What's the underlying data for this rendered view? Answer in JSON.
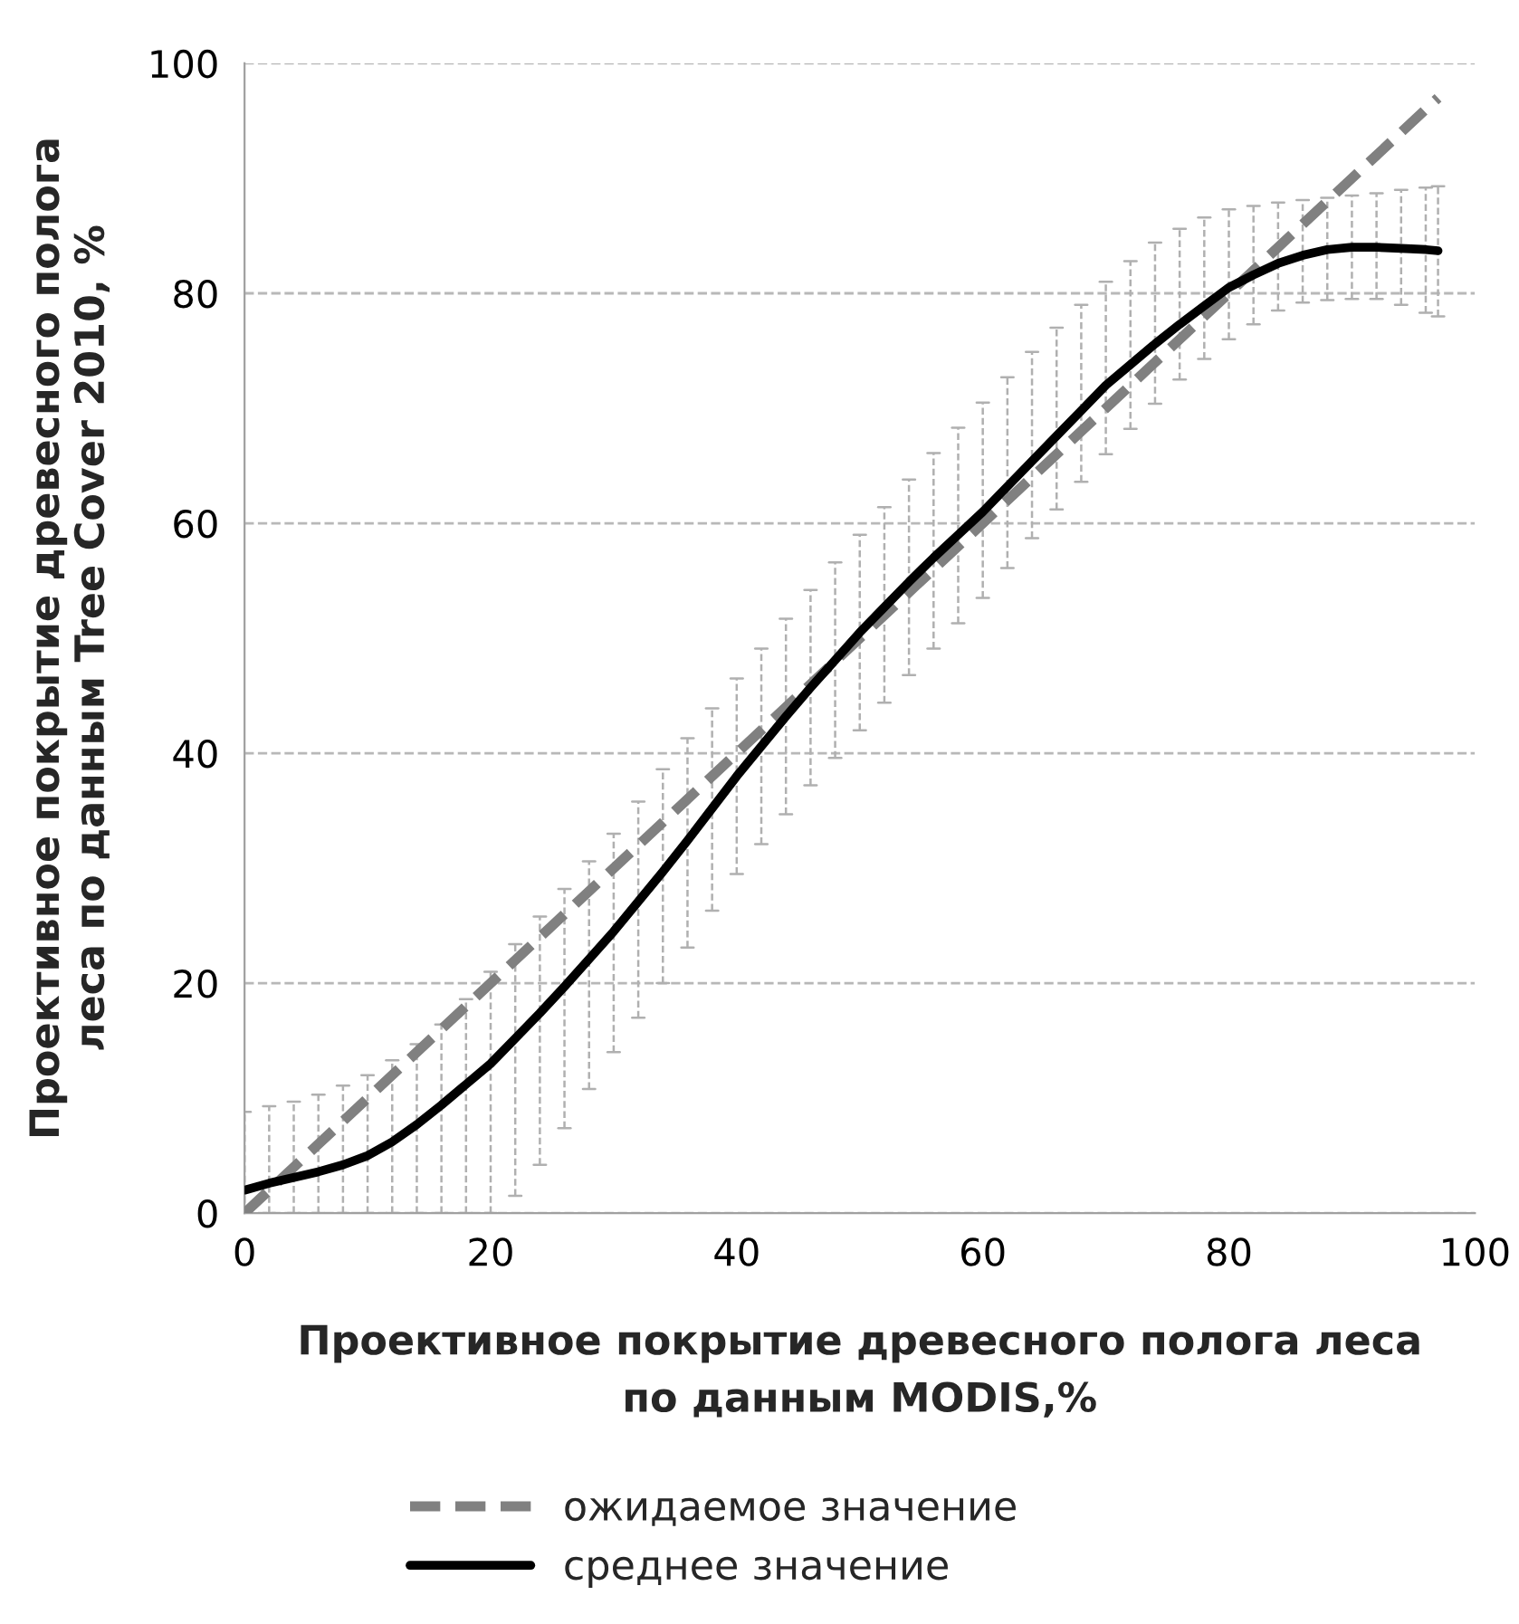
{
  "chart_data": {
    "type": "line",
    "xlabel": "Проективное покрытие древесного полога леса\nпо данным MODIS,%",
    "ylabel": "Проективное покрытие древесного полога\nлеса по данным Tree Cover 2010, %",
    "xlim": [
      0,
      100
    ],
    "xticks": [
      0,
      20,
      40,
      60,
      80,
      100
    ],
    "ylim": [
      0,
      100
    ],
    "yticks": [
      0,
      20,
      40,
      60,
      80,
      100
    ],
    "grid": "y",
    "legend": "bottom",
    "marker": "none",
    "series": [
      {
        "name": "ожидаемое значение",
        "color": "#808080",
        "line_style": "dashed",
        "x": [
          0,
          97
        ],
        "values": [
          0,
          97
        ]
      },
      {
        "name": "среднее значение",
        "color": "#000000",
        "line_style": "solid",
        "x": [
          0,
          2,
          4,
          6,
          8,
          10,
          12,
          14,
          16,
          18,
          20,
          22,
          24,
          26,
          28,
          30,
          32,
          34,
          36,
          38,
          40,
          42,
          44,
          46,
          48,
          50,
          52,
          54,
          56,
          58,
          60,
          62,
          64,
          66,
          68,
          70,
          72,
          74,
          76,
          78,
          80,
          82,
          84,
          86,
          88,
          90,
          92,
          94,
          96,
          97
        ],
        "values": [
          2,
          2.6,
          3.1,
          3.6,
          4.2,
          5,
          6.2,
          7.7,
          9.4,
          11.2,
          13,
          15.2,
          17.4,
          19.7,
          22.1,
          24.5,
          27.1,
          29.7,
          32.4,
          35.2,
          38,
          40.6,
          43.2,
          45.7,
          48.1,
          50.5,
          52.7,
          54.9,
          57,
          59,
          61,
          63.2,
          65.4,
          67.6,
          69.8,
          72,
          73.8,
          75.6,
          77.3,
          78.9,
          80.5,
          81.6,
          82.6,
          83.3,
          83.8,
          84,
          84,
          83.9,
          83.8,
          83.7
        ],
        "errors": [
          [
            0,
            8.8
          ],
          [
            0,
            9.3
          ],
          [
            0,
            9.7
          ],
          [
            0,
            10.3
          ],
          [
            0,
            11.1
          ],
          [
            0,
            12
          ],
          [
            0,
            13.3
          ],
          [
            0,
            14.7
          ],
          [
            0,
            16.4
          ],
          [
            0,
            18.6
          ],
          [
            0,
            21
          ],
          [
            1.5,
            23.4
          ],
          [
            4.2,
            25.8
          ],
          [
            7.4,
            28.2
          ],
          [
            10.8,
            30.6
          ],
          [
            14,
            33
          ],
          [
            17,
            35.8
          ],
          [
            20,
            38.6
          ],
          [
            23.1,
            41.3
          ],
          [
            26.3,
            43.9
          ],
          [
            29.5,
            46.5
          ],
          [
            32.1,
            49.1
          ],
          [
            34.7,
            51.7
          ],
          [
            37.2,
            54.2
          ],
          [
            39.6,
            56.6
          ],
          [
            42,
            59
          ],
          [
            44.4,
            61.4
          ],
          [
            46.8,
            63.8
          ],
          [
            49.1,
            66.1
          ],
          [
            51.3,
            68.3
          ],
          [
            53.5,
            70.5
          ],
          [
            56.1,
            72.7
          ],
          [
            58.7,
            74.9
          ],
          [
            61.2,
            77
          ],
          [
            63.6,
            79
          ],
          [
            66,
            81
          ],
          [
            68.2,
            82.8
          ],
          [
            70.4,
            84.4
          ],
          [
            72.5,
            85.6
          ],
          [
            74.3,
            86.6
          ],
          [
            76,
            87.3
          ],
          [
            77.3,
            87.6
          ],
          [
            78.5,
            87.9
          ],
          [
            79.2,
            88.1
          ],
          [
            79.4,
            88.3
          ],
          [
            79.5,
            88.5
          ],
          [
            79.5,
            88.7
          ],
          [
            79,
            89
          ],
          [
            78.3,
            89.2
          ],
          [
            78,
            89.3
          ]
        ]
      }
    ]
  }
}
